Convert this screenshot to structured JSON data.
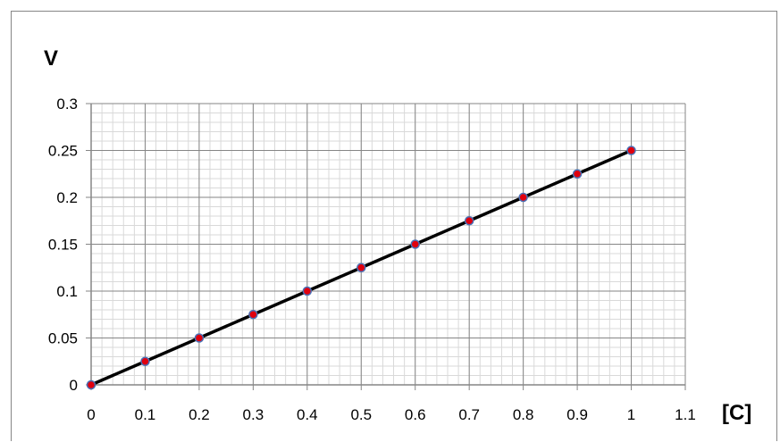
{
  "chart_data": {
    "type": "scatter",
    "title": "",
    "xlabel": "[C]",
    "ylabel": "V",
    "xlim": [
      0,
      1.1
    ],
    "ylim": [
      0,
      0.3
    ],
    "x_ticks": [
      "0",
      "0.1",
      "0.2",
      "0.3",
      "0.4",
      "0.5",
      "0.6",
      "0.7",
      "0.8",
      "0.9",
      "1",
      "1.1"
    ],
    "y_ticks": [
      "0",
      "0.05",
      "0.1",
      "0.15",
      "0.2",
      "0.25",
      "0.3"
    ],
    "grid": true,
    "minor_grid": true,
    "legend": "none",
    "series": [
      {
        "x": [
          0,
          0.1,
          0.2,
          0.3,
          0.4,
          0.5,
          0.6,
          0.7,
          0.8,
          0.9,
          1.0
        ],
        "y": [
          0,
          0.025,
          0.05,
          0.075,
          0.1,
          0.125,
          0.15,
          0.175,
          0.2,
          0.225,
          0.25
        ],
        "line_color": "#000000",
        "marker_fill": "#e0000e",
        "marker_edge": "#4a6fb5"
      }
    ]
  }
}
